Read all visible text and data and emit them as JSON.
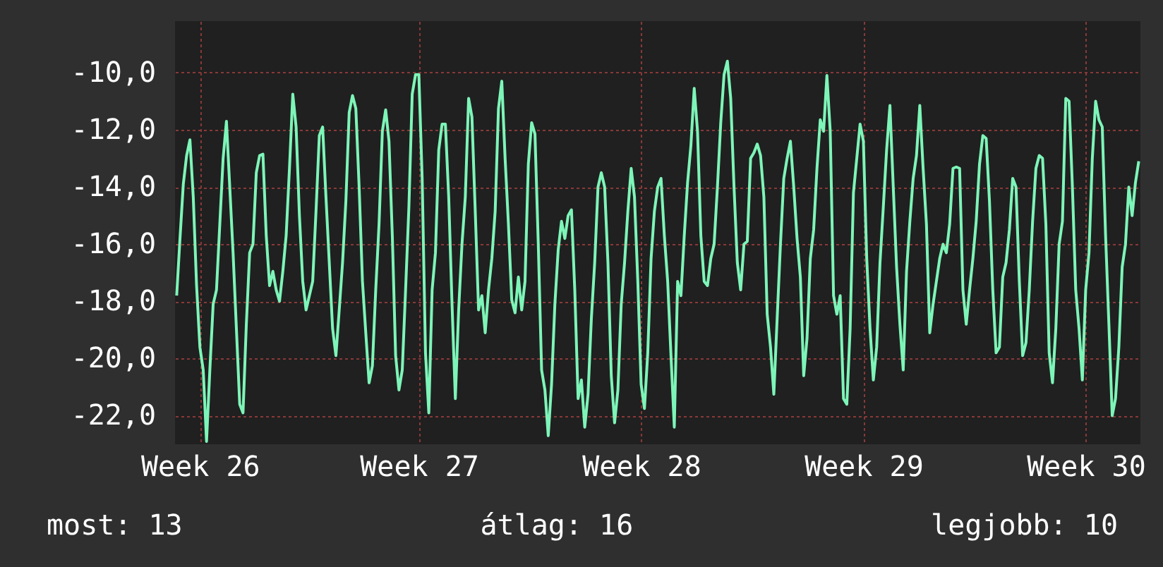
{
  "chart_data": {
    "type": "line",
    "grid": true,
    "marker": "none",
    "line_style": "solid",
    "categories": [
      null,
      null,
      null,
      null,
      null,
      null,
      null,
      "Week 26",
      null,
      null,
      null,
      null,
      null,
      null,
      null,
      null,
      null,
      null,
      null,
      null,
      null,
      null,
      null,
      null,
      null,
      null,
      null,
      null,
      null,
      null,
      null,
      null,
      null,
      null,
      null,
      null,
      null,
      null,
      null,
      null,
      null,
      null,
      null,
      null,
      null,
      null,
      null,
      null,
      null,
      null,
      null,
      null,
      null,
      null,
      null,
      null,
      null,
      null,
      null,
      null,
      null,
      null,
      null,
      null,
      null,
      null,
      null,
      null,
      null,
      null,
      null,
      null,
      null,
      "Week 27",
      null,
      null,
      null,
      null,
      null,
      null,
      null,
      null,
      null,
      null,
      null,
      null,
      null,
      null,
      null,
      null,
      null,
      null,
      null,
      null,
      null,
      null,
      null,
      null,
      null,
      null,
      null,
      null,
      null,
      null,
      null,
      null,
      null,
      null,
      null,
      null,
      null,
      null,
      null,
      null,
      null,
      null,
      null,
      null,
      null,
      null,
      null,
      null,
      null,
      null,
      null,
      null,
      null,
      null,
      null,
      null,
      null,
      null,
      null,
      null,
      null,
      null,
      null,
      null,
      null,
      null,
      "Week 28",
      null,
      null,
      null,
      null,
      null,
      null,
      null,
      null,
      null,
      null,
      null,
      null,
      null,
      null,
      null,
      null,
      null,
      null,
      null,
      null,
      null,
      null,
      null,
      null,
      null,
      null,
      null,
      null,
      null,
      null,
      null,
      null,
      null,
      null,
      null,
      null,
      null,
      null,
      null,
      null,
      null,
      null,
      null,
      null,
      null,
      null,
      null,
      null,
      null,
      null,
      null,
      null,
      null,
      null,
      null,
      null,
      null,
      null,
      null,
      null,
      null,
      null,
      null,
      null,
      null,
      null,
      "Week 29",
      null,
      null,
      null,
      null,
      null,
      null,
      null,
      null,
      null,
      null,
      null,
      null,
      null,
      null,
      null,
      null,
      null,
      null,
      null,
      null,
      null,
      null,
      null,
      null,
      null,
      null,
      null,
      null,
      null,
      null,
      null,
      null,
      null,
      null,
      null,
      null,
      null,
      null,
      null,
      null,
      null,
      null,
      null,
      null,
      null,
      null,
      null,
      null,
      null,
      null,
      null,
      null,
      null,
      null,
      null,
      null,
      null,
      null,
      null,
      null,
      null,
      null,
      null,
      null,
      null,
      null,
      "Week 30",
      null,
      null,
      null,
      null,
      null,
      null,
      null,
      null,
      null,
      null,
      null,
      null,
      null,
      null,
      null,
      null
    ],
    "ylim": [
      -23,
      -8.2
    ],
    "yticks": [
      {
        "value": -10,
        "label": "-10,0"
      },
      {
        "value": -12,
        "label": "-12,0"
      },
      {
        "value": -14,
        "label": "-14,0"
      },
      {
        "value": -16,
        "label": "-16,0"
      },
      {
        "value": -18,
        "label": "-18,0"
      },
      {
        "value": -20,
        "label": "-20,0"
      },
      {
        "value": -22,
        "label": "-22,0"
      }
    ],
    "annotations": [
      "most: 13",
      "átlag: 16",
      "legjobb: 10"
    ],
    "series": [
      {
        "color": "#7df5b8",
        "values": [
          -17.8,
          -15.8,
          -13.9,
          -12.9,
          -12.35,
          -14.35,
          -17.45,
          -19.6,
          -20.4,
          -22.9,
          -20.4,
          -18.1,
          -17.6,
          -15.3,
          -13.0,
          -11.7,
          -14.0,
          -16.3,
          -18.95,
          -21.6,
          -21.9,
          -18.8,
          -16.3,
          -16.0,
          -13.5,
          -12.9,
          -12.85,
          -15.7,
          -17.45,
          -16.95,
          -17.6,
          -18.0,
          -16.95,
          -15.7,
          -13.35,
          -10.75,
          -11.9,
          -15.0,
          -17.3,
          -18.3,
          -17.8,
          -17.3,
          -14.85,
          -12.2,
          -11.9,
          -14.35,
          -16.65,
          -18.95,
          -19.9,
          -18.3,
          -16.65,
          -14.5,
          -11.4,
          -10.8,
          -11.25,
          -14.0,
          -17.3,
          -19.1,
          -20.85,
          -20.25,
          -17.6,
          -15.3,
          -12.05,
          -11.3,
          -12.4,
          -15.7,
          -19.9,
          -21.1,
          -20.4,
          -17.6,
          -14.7,
          -10.75,
          -10.07,
          -10.07,
          -13.7,
          -19.8,
          -21.9,
          -17.6,
          -16.3,
          -12.7,
          -11.8,
          -11.8,
          -14.35,
          -18.1,
          -21.4,
          -18.3,
          -16.0,
          -14.35,
          -10.9,
          -11.55,
          -14.85,
          -18.3,
          -17.8,
          -19.1,
          -17.6,
          -16.5,
          -14.85,
          -11.25,
          -10.3,
          -13.0,
          -15.3,
          -17.95,
          -18.4,
          -17.15,
          -18.3,
          -17.3,
          -13.2,
          -11.75,
          -12.15,
          -16.0,
          -20.4,
          -21.1,
          -22.7,
          -20.9,
          -18.1,
          -16.2,
          -15.2,
          -15.8,
          -15.0,
          -14.8,
          -17.6,
          -21.4,
          -20.75,
          -22.4,
          -21.25,
          -18.6,
          -16.65,
          -14.0,
          -13.5,
          -14.0,
          -16.65,
          -20.6,
          -22.25,
          -21.1,
          -18.1,
          -16.65,
          -14.85,
          -13.35,
          -14.35,
          -17.3,
          -20.9,
          -21.75,
          -19.8,
          -16.5,
          -14.85,
          -14.0,
          -13.7,
          -15.7,
          -17.3,
          -19.9,
          -22.4,
          -17.3,
          -17.8,
          -15.7,
          -13.85,
          -12.55,
          -10.55,
          -12.05,
          -15.7,
          -17.3,
          -17.45,
          -16.5,
          -16.0,
          -14.0,
          -11.75,
          -10.07,
          -9.6,
          -10.9,
          -14.0,
          -16.65,
          -17.6,
          -16.0,
          -15.9,
          -13.0,
          -12.8,
          -12.5,
          -12.9,
          -14.35,
          -18.45,
          -19.6,
          -21.25,
          -18.6,
          -16.0,
          -13.7,
          -13.0,
          -12.4,
          -14.0,
          -15.8,
          -17.15,
          -20.6,
          -19.3,
          -16.5,
          -15.5,
          -13.35,
          -11.65,
          -12.05,
          -10.1,
          -12.05,
          -17.8,
          -18.45,
          -17.8,
          -21.4,
          -21.6,
          -18.95,
          -14.2,
          -13.0,
          -11.8,
          -12.4,
          -16.5,
          -18.95,
          -20.75,
          -19.6,
          -16.65,
          -14.7,
          -12.7,
          -11.15,
          -14.0,
          -16.8,
          -18.8,
          -20.4,
          -16.95,
          -15.2,
          -13.7,
          -12.9,
          -11.15,
          -13.35,
          -15.3,
          -19.1,
          -18.1,
          -17.3,
          -16.5,
          -16.0,
          -16.3,
          -15.3,
          -13.35,
          -13.3,
          -13.35,
          -17.6,
          -18.8,
          -17.6,
          -16.5,
          -15.2,
          -13.2,
          -12.2,
          -12.3,
          -14.5,
          -17.6,
          -19.8,
          -19.6,
          -17.15,
          -16.65,
          -15.5,
          -13.7,
          -14.0,
          -17.3,
          -19.9,
          -19.45,
          -17.6,
          -15.2,
          -13.35,
          -12.9,
          -13.0,
          -15.3,
          -19.8,
          -20.85,
          -18.95,
          -16.0,
          -15.2,
          -10.9,
          -11.0,
          -14.0,
          -17.6,
          -18.95,
          -20.75,
          -17.6,
          -16.3,
          -13.0,
          -11.0,
          -11.65,
          -11.9,
          -15.7,
          -18.8,
          -22.0,
          -21.4,
          -19.6,
          -16.8,
          -16.0,
          -14.0,
          -15.0,
          -13.85,
          -13.1
        ]
      }
    ]
  }
}
